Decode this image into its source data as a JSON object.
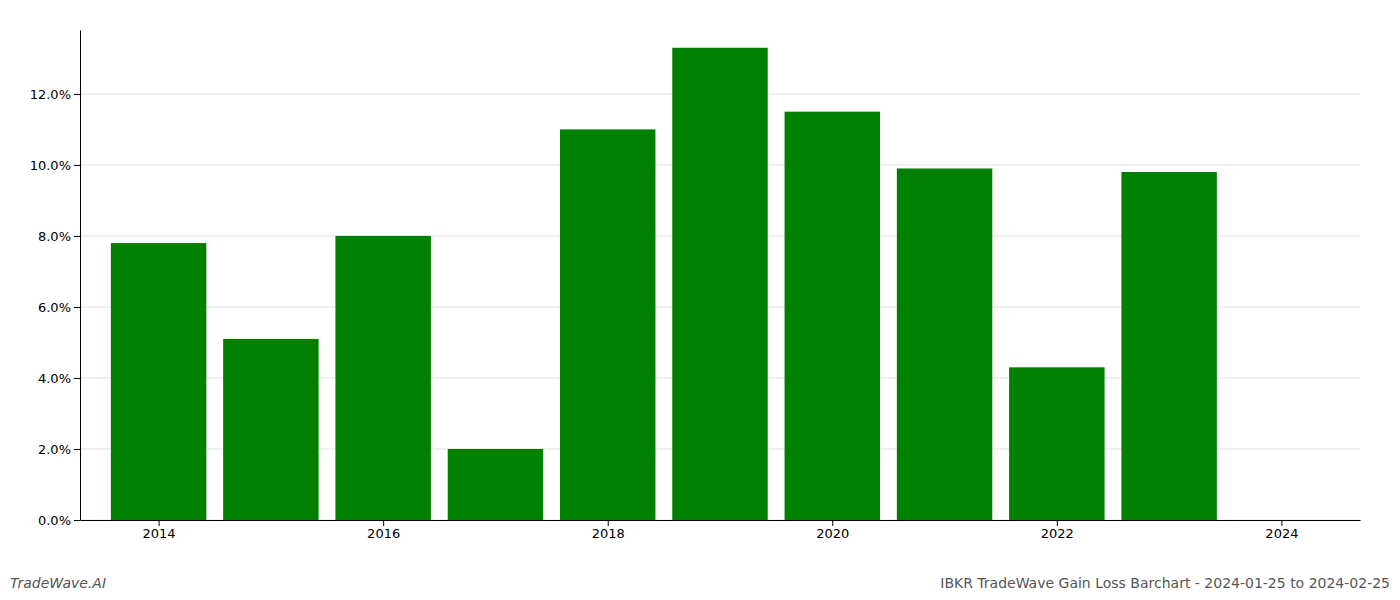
{
  "chart_data": {
    "type": "bar",
    "x": [
      2014,
      2015,
      2016,
      2017,
      2018,
      2019,
      2020,
      2021,
      2022,
      2023
    ],
    "values": [
      0.078,
      0.051,
      0.08,
      0.02,
      0.11,
      0.133,
      0.115,
      0.099,
      0.043,
      0.098
    ],
    "color": "#008000",
    "xlim": [
      2013.3,
      2024.7
    ],
    "xticks": [
      2014,
      2016,
      2018,
      2020,
      2022,
      2024
    ],
    "ylim": [
      0,
      0.138
    ],
    "yticks": [
      {
        "value": 0.0,
        "label": "0.0%"
      },
      {
        "value": 0.02,
        "label": "2.0%"
      },
      {
        "value": 0.04,
        "label": "4.0%"
      },
      {
        "value": 0.06,
        "label": "6.0%"
      },
      {
        "value": 0.08,
        "label": "8.0%"
      },
      {
        "value": 0.1,
        "label": "10.0%"
      },
      {
        "value": 0.12,
        "label": "12.0%"
      }
    ],
    "grid": true,
    "annotations": [
      "TradeWave.AI",
      "IBKR TradeWave Gain Loss Barchart - 2024-01-25 to 2024-02-25"
    ]
  }
}
